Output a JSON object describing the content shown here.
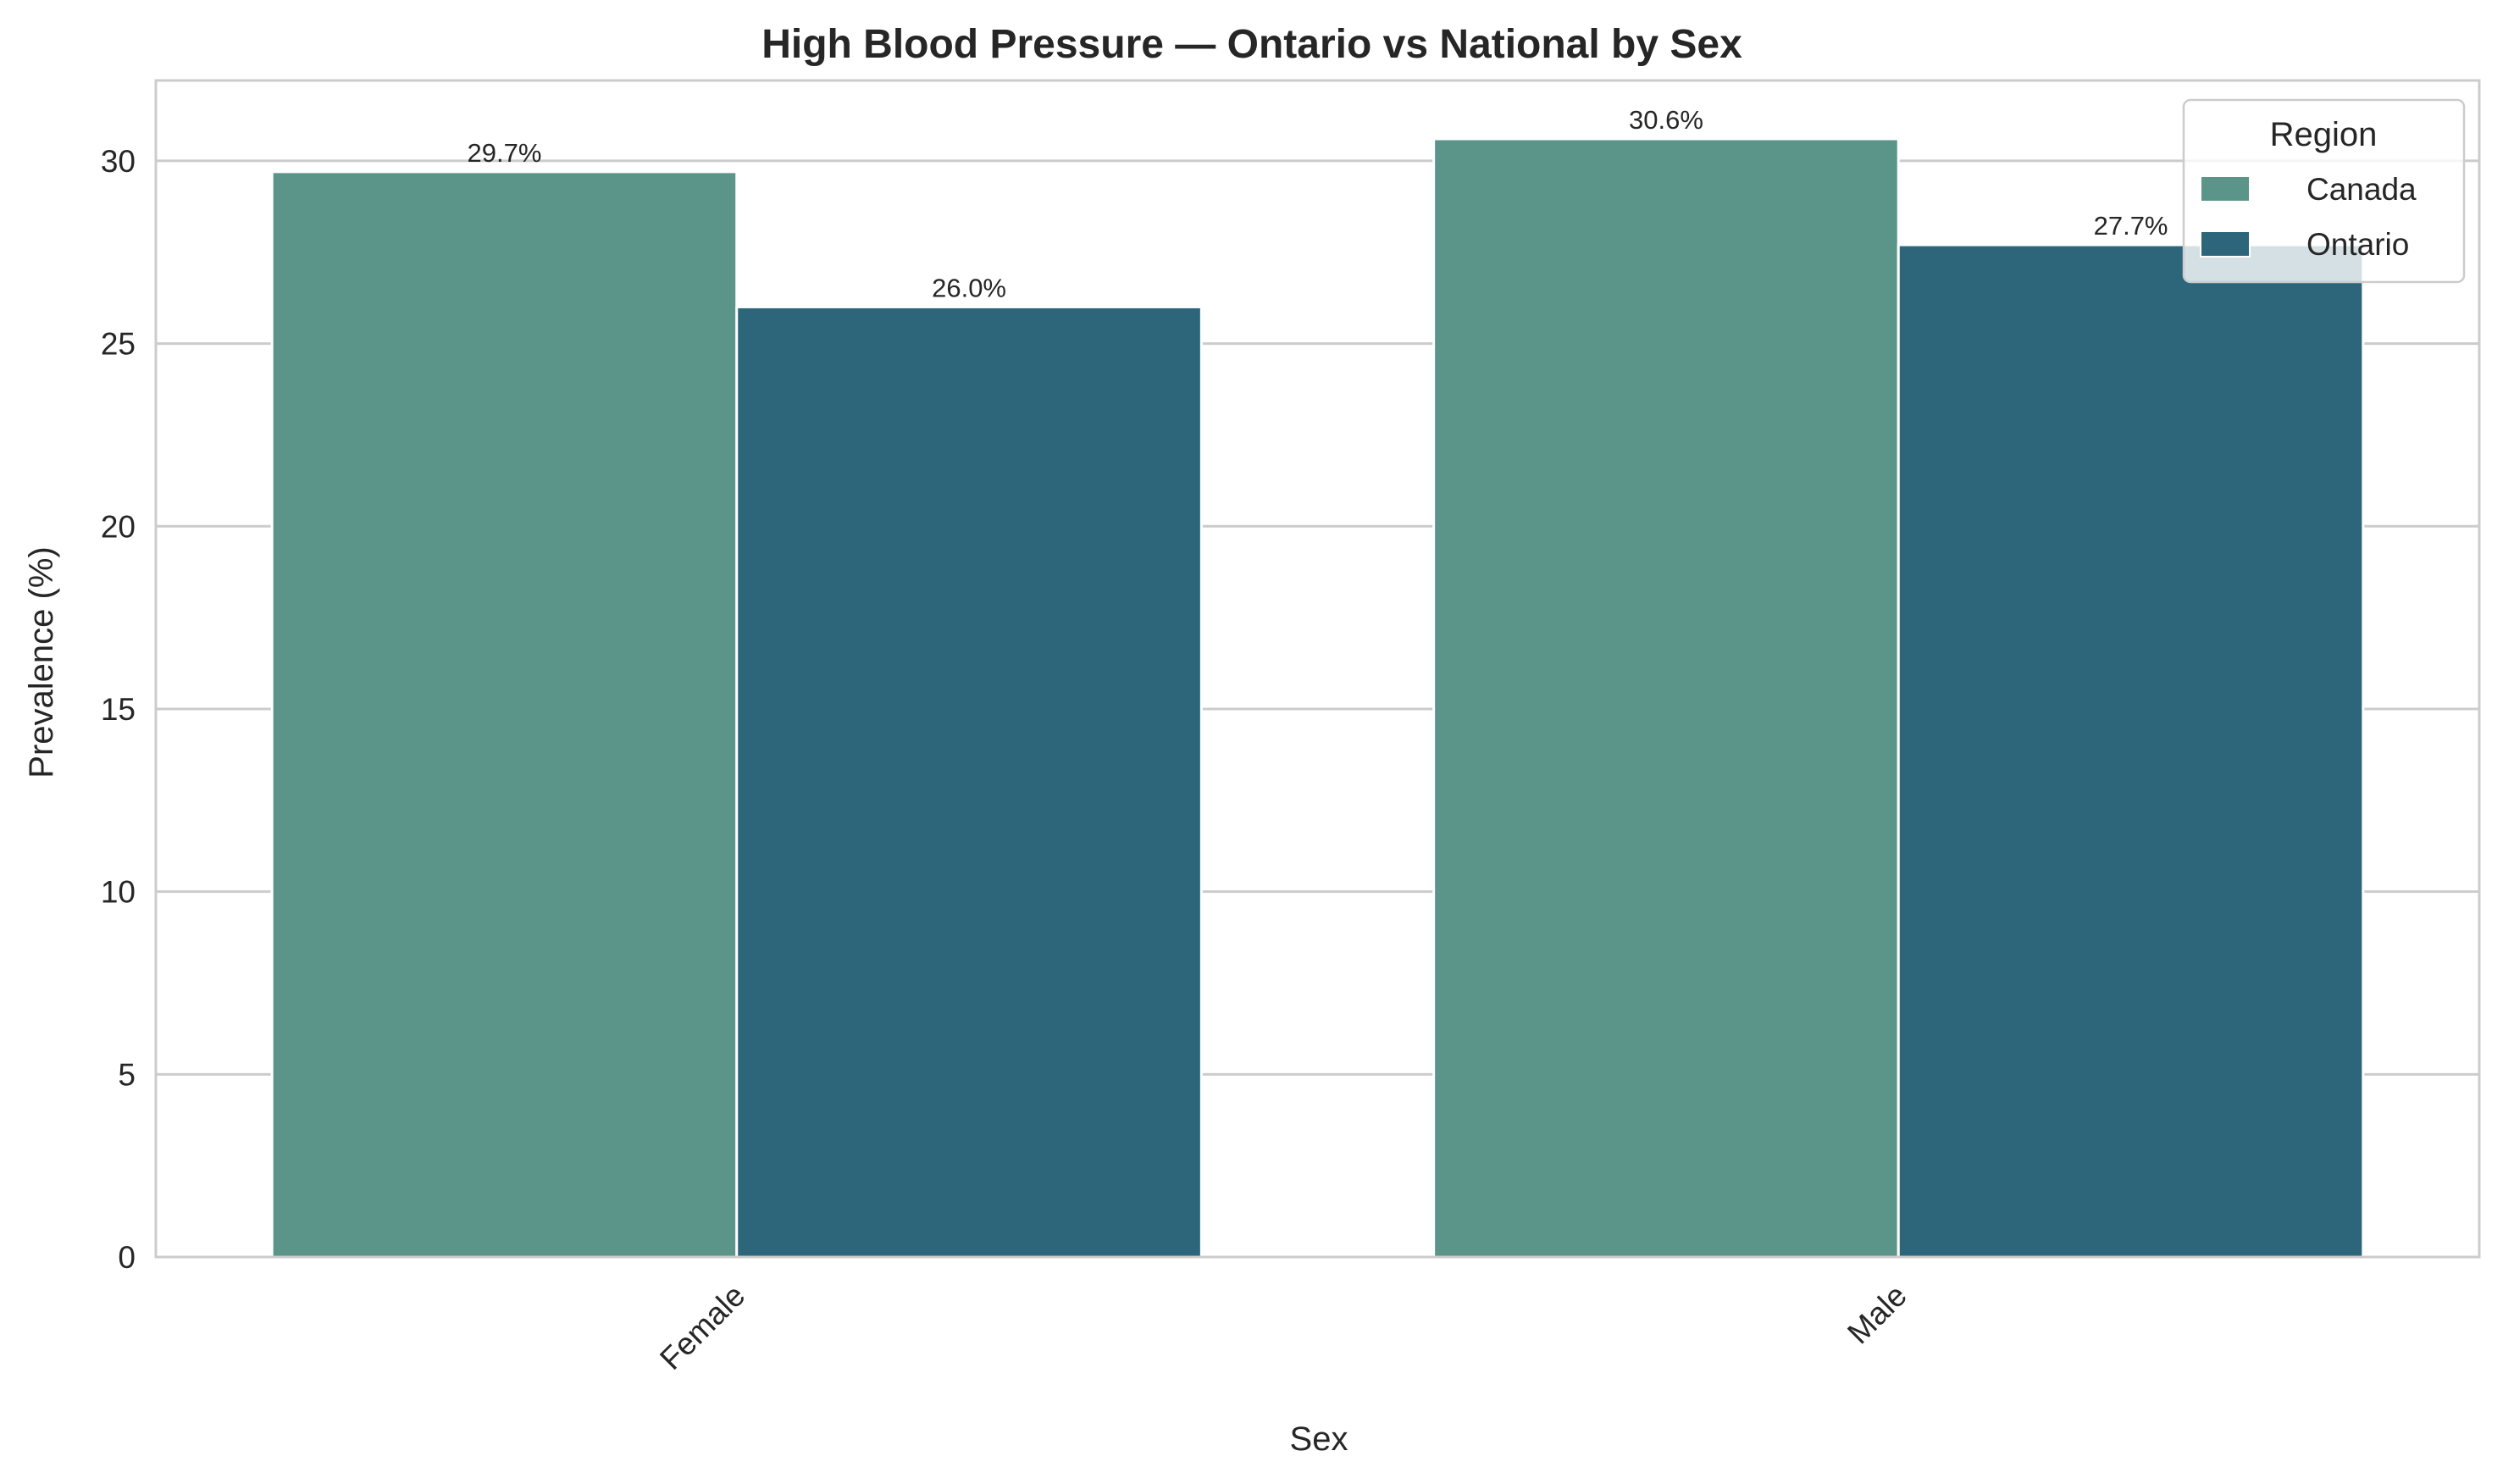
{
  "chart_data": {
    "type": "bar",
    "title": "High Blood Pressure — Ontario vs National by Sex",
    "xlabel": "Sex",
    "ylabel": "Prevalence (%)",
    "categories": [
      "Female",
      "Male"
    ],
    "series": [
      {
        "name": "Canada",
        "values": [
          29.7,
          30.6
        ],
        "labels": [
          "29.7%",
          "30.6%"
        ],
        "color": "#5b9589"
      },
      {
        "name": "Ontario",
        "values": [
          26.0,
          27.7
        ],
        "labels": [
          "26.0%",
          "27.7%"
        ],
        "color": "#2d667b"
      }
    ],
    "ylim": [
      0,
      32.2
    ],
    "yticks": [
      0,
      5,
      10,
      15,
      20,
      25,
      30
    ],
    "grid": "horizontal",
    "legend": {
      "title": "Region",
      "placement": "top-right"
    }
  }
}
